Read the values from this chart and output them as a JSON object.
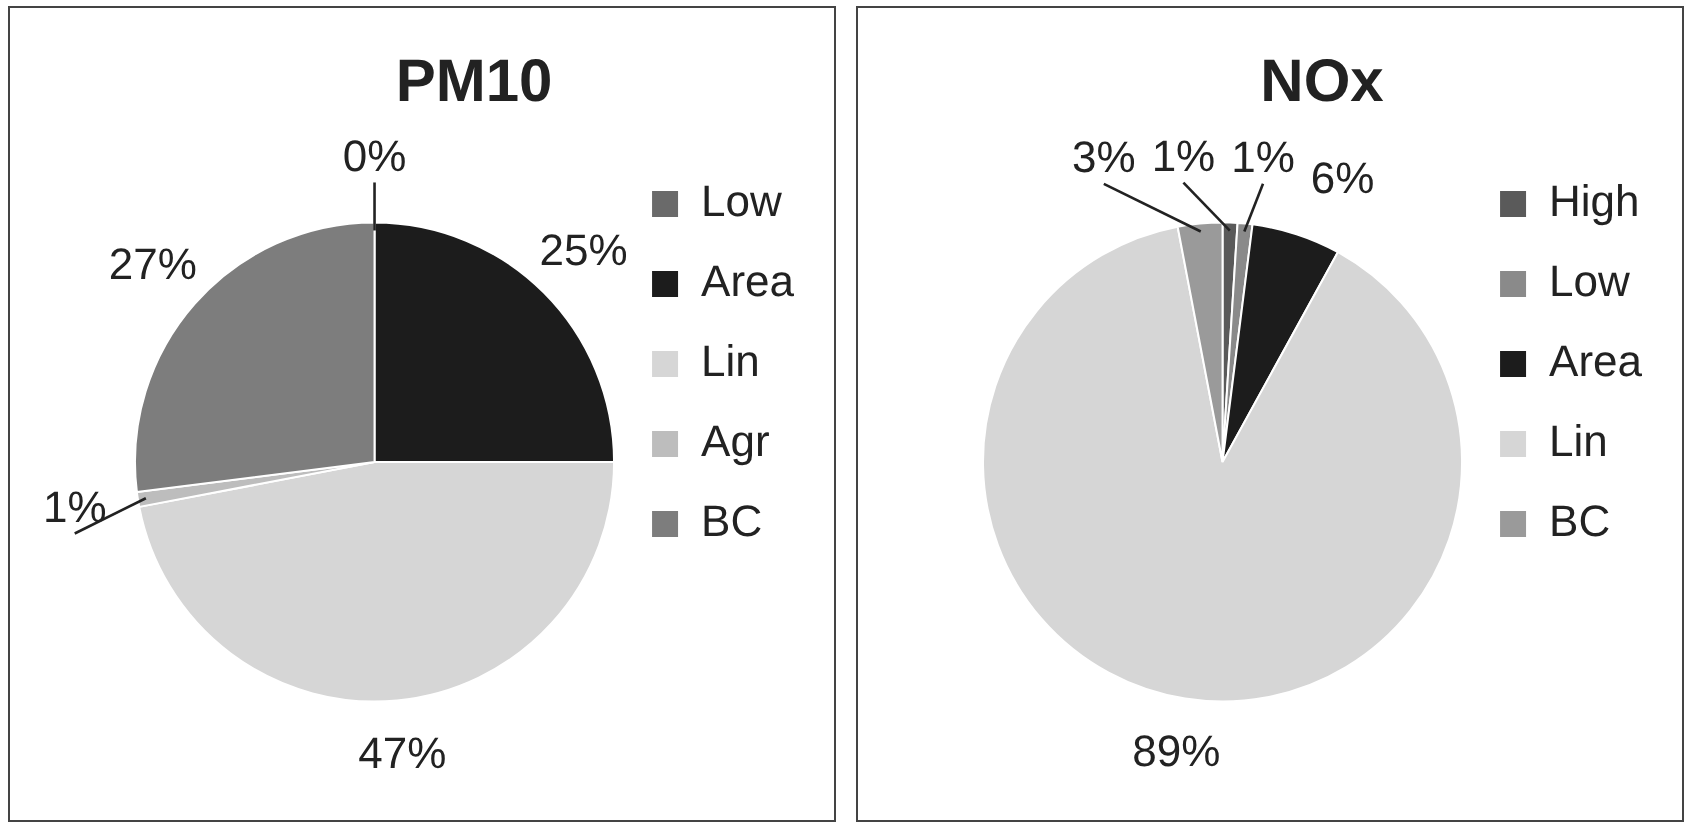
{
  "chart_data": [
    {
      "type": "pie",
      "title": "PM10",
      "categories": [
        "Low",
        "Area",
        "Lin",
        "Agr",
        "BC"
      ],
      "values": [
        0,
        25,
        47,
        1,
        27
      ],
      "colors": [
        "#6a6a6a",
        "#1c1c1c",
        "#d6d6d6",
        "#bdbdbd",
        "#7d7d7d"
      ],
      "value_labels": [
        "0%",
        "25%",
        "47%",
        "1%",
        "27%"
      ],
      "legend": "right"
    },
    {
      "type": "pie",
      "title": "NOx",
      "categories": [
        "High",
        "Low",
        "Area",
        "Lin",
        "BC"
      ],
      "values": [
        1,
        1,
        6,
        89,
        3
      ],
      "colors": [
        "#5a5a5a",
        "#8a8a8a",
        "#1c1c1c",
        "#d6d6d6",
        "#9a9a9a"
      ],
      "value_labels": [
        "1%",
        "1%",
        "6%",
        "89%",
        "3%"
      ],
      "legend": "right"
    }
  ]
}
